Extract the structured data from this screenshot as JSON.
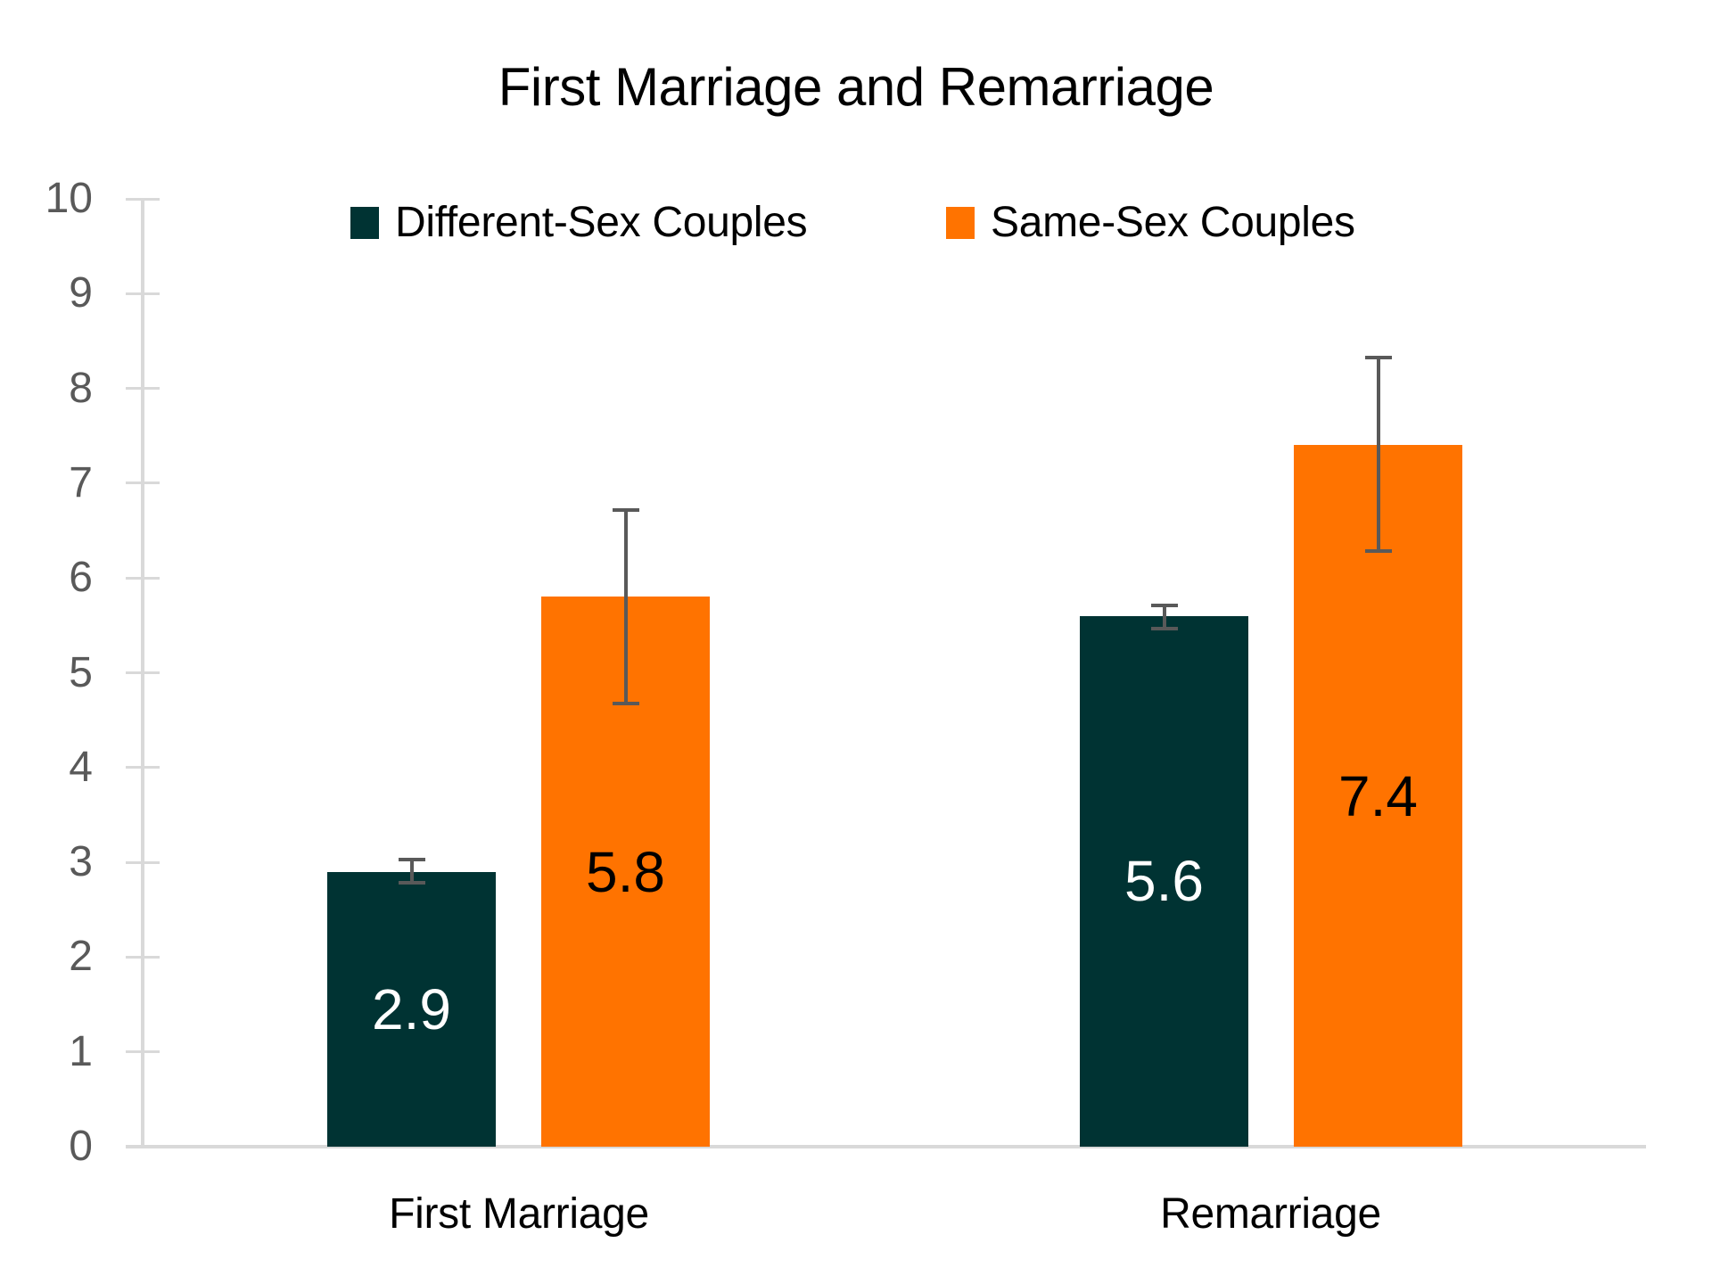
{
  "chart_data": {
    "type": "bar",
    "title": "First Marriage and Remarriage",
    "xlabel": "",
    "ylabel": "",
    "categories": [
      "First Marriage",
      "Remarriage"
    ],
    "series": [
      {
        "name": "Different-Sex Couples",
        "color": "#003333",
        "values": [
          2.9,
          5.6
        ],
        "value_labels": [
          "2.9",
          "5.6"
        ],
        "error_bars": [
          [
            2.78,
            3.03
          ],
          [
            5.47,
            5.71
          ]
        ]
      },
      {
        "name": "Same-Sex Couples",
        "color": "#FF7300",
        "values": [
          5.8,
          7.4
        ],
        "value_labels": [
          "5.8",
          "7.4"
        ],
        "error_bars": [
          [
            4.68,
            6.72
          ],
          [
            6.28,
            8.33
          ]
        ]
      }
    ],
    "ylim": [
      0,
      10
    ],
    "yticks": [
      "0",
      "1",
      "2",
      "3",
      "4",
      "5",
      "6",
      "7",
      "8",
      "9",
      "10"
    ],
    "grid": false,
    "legend_position": "top",
    "data_label_position": "center"
  },
  "legend": {
    "items": [
      {
        "label": "Different-Sex Couples",
        "color": "#003333"
      },
      {
        "label": "Same-Sex Couples",
        "color": "#FF7300"
      }
    ]
  },
  "style": {
    "axis_color": "#d9d9d9",
    "tick_label_color": "#595959",
    "error_bar_color": "#595959",
    "label_on_dark": "#ffffff",
    "label_on_orange": "#000000"
  }
}
